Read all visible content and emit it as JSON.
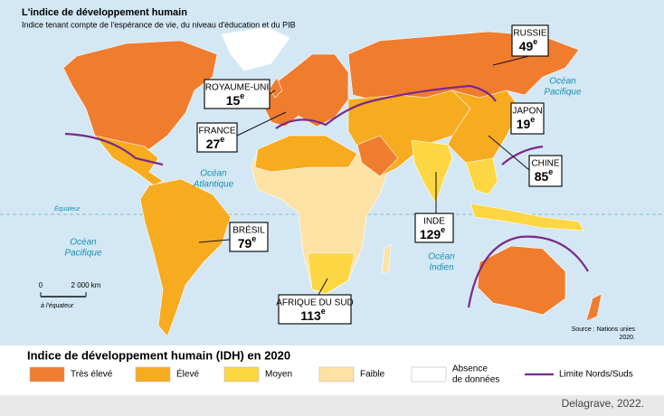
{
  "header": {
    "title": "L'indice de développement humain",
    "subtitle": "Indice tenant compte de l'espérance de vie, du niveau d'éducation et du PIB"
  },
  "callouts": [
    {
      "name": "RUSSIE",
      "rank": "49",
      "suffix": "e"
    },
    {
      "name": "ROYAUME-UNI",
      "rank": "15",
      "suffix": "e"
    },
    {
      "name": "JAPON",
      "rank": "19",
      "suffix": "e"
    },
    {
      "name": "FRANCE",
      "rank": "27",
      "suffix": "e"
    },
    {
      "name": "CHINE",
      "rank": "85",
      "suffix": "e"
    },
    {
      "name": "INDE",
      "rank": "129",
      "suffix": "e"
    },
    {
      "name": "BRÉSIL",
      "rank": "79",
      "suffix": "e"
    },
    {
      "name": "AFRIQUE DU SUD",
      "rank": "113",
      "suffix": "e"
    }
  ],
  "oceans": [
    {
      "lines": [
        "Océan",
        "Pacifique"
      ]
    },
    {
      "lines": [
        "Océan",
        "Atlantique"
      ]
    },
    {
      "lines": [
        "Océan",
        "Pacifique"
      ]
    },
    {
      "lines": [
        "Océan",
        "Indien"
      ]
    }
  ],
  "equator": "Équateur",
  "scale": {
    "zero": "0",
    "distance": "2 000 km",
    "note": "à l'équateur"
  },
  "source": {
    "lines": [
      "Source : Nations unies",
      "2020."
    ]
  },
  "legend": {
    "title": "Indice de développement humain (IDH) en 2020",
    "items": [
      {
        "lines": [
          "Très élevé"
        ],
        "color": "#f07c2e"
      },
      {
        "lines": [
          "Élevé"
        ],
        "color": "#f7ab1f"
      },
      {
        "lines": [
          "Moyen"
        ],
        "color": "#fcd743"
      },
      {
        "lines": [
          "Faible"
        ],
        "color": "#fde2a6"
      },
      {
        "lines": [
          "Absence",
          "de données"
        ],
        "color": "#ffffff"
      }
    ],
    "line": {
      "label": "Limite Nords/Suds",
      "color": "#7b2a8a"
    }
  },
  "credit": "Delagrave, 2022."
}
